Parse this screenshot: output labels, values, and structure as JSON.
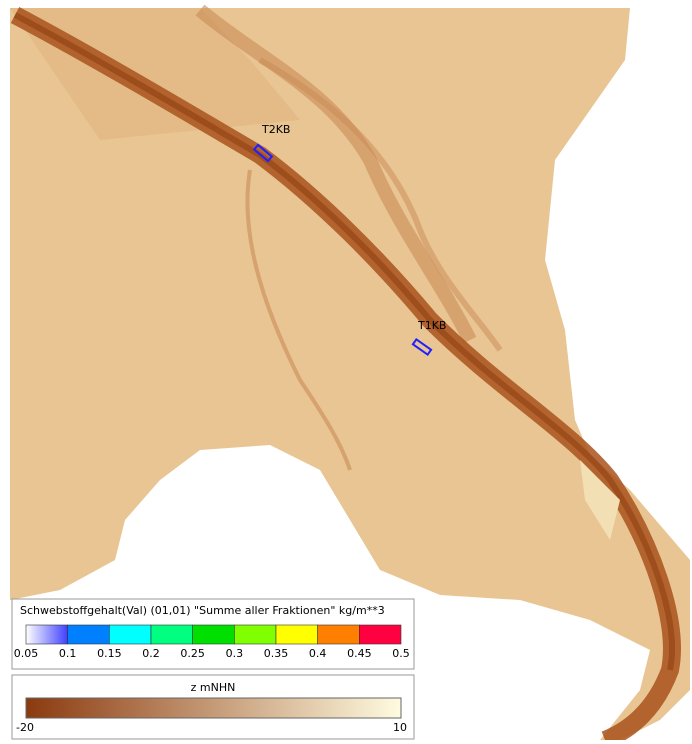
{
  "map": {
    "markers": [
      {
        "label": "T2KB"
      },
      {
        "label": "T1KB"
      }
    ]
  },
  "legend_concentration": {
    "title": "Schwebstoffgehalt(Val) (01,01) \"Summe aller Fraktionen\" kg/m**3",
    "ticks": [
      0.05,
      0.1,
      0.15,
      0.2,
      0.25,
      0.3,
      0.35,
      0.4,
      0.45,
      0.5
    ],
    "colors": [
      "#4040ff",
      "#0080ff",
      "#00ffff",
      "#00ff80",
      "#00e000",
      "#80ff00",
      "#ffff00",
      "#ff8000",
      "#ff0040",
      "#a000a0"
    ]
  },
  "legend_depth": {
    "title": "z mNHN",
    "min_label": -20,
    "max_label": 10,
    "color_min": "#8b3a0f",
    "color_max": "#fffbe0"
  }
}
